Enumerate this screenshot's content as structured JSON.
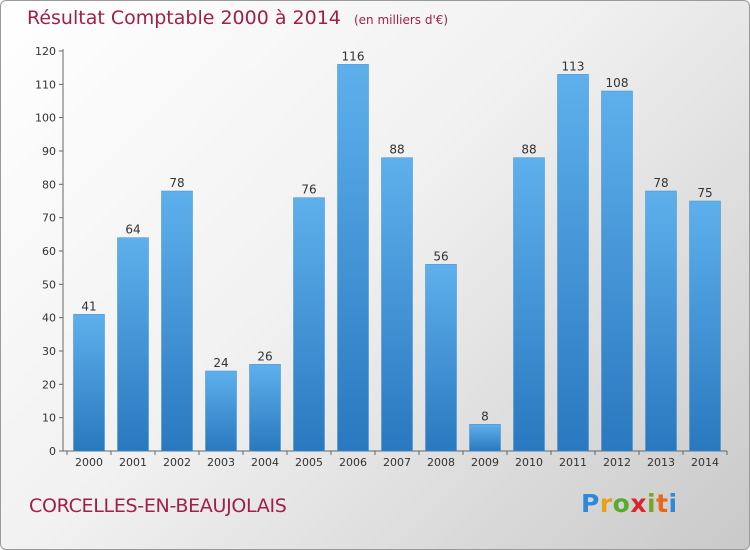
{
  "title": "Résultat Comptable 2000 à 2014",
  "unit_note": "(en milliers d'€)",
  "commune": "CORCELLES-EN-BEAUJOLAIS",
  "logo": {
    "text": "Proxiti"
  },
  "colors": {
    "bar_light": "#5eb0ec",
    "bar_dark": "#2a78bf",
    "title": "#a0204a"
  },
  "chart_data": {
    "type": "bar",
    "title": "Résultat Comptable 2000 à 2014",
    "categories": [
      "2000",
      "2001",
      "2002",
      "2003",
      "2004",
      "2005",
      "2006",
      "2007",
      "2008",
      "2009",
      "2010",
      "2011",
      "2012",
      "2013",
      "2014"
    ],
    "values": [
      41,
      64,
      78,
      24,
      26,
      76,
      116,
      88,
      56,
      8,
      88,
      113,
      108,
      78,
      75
    ],
    "ylim": [
      0,
      120
    ],
    "yticks": [
      0,
      10,
      20,
      30,
      40,
      50,
      60,
      70,
      80,
      90,
      100,
      110,
      120
    ],
    "grid": false,
    "data_labels": true
  }
}
